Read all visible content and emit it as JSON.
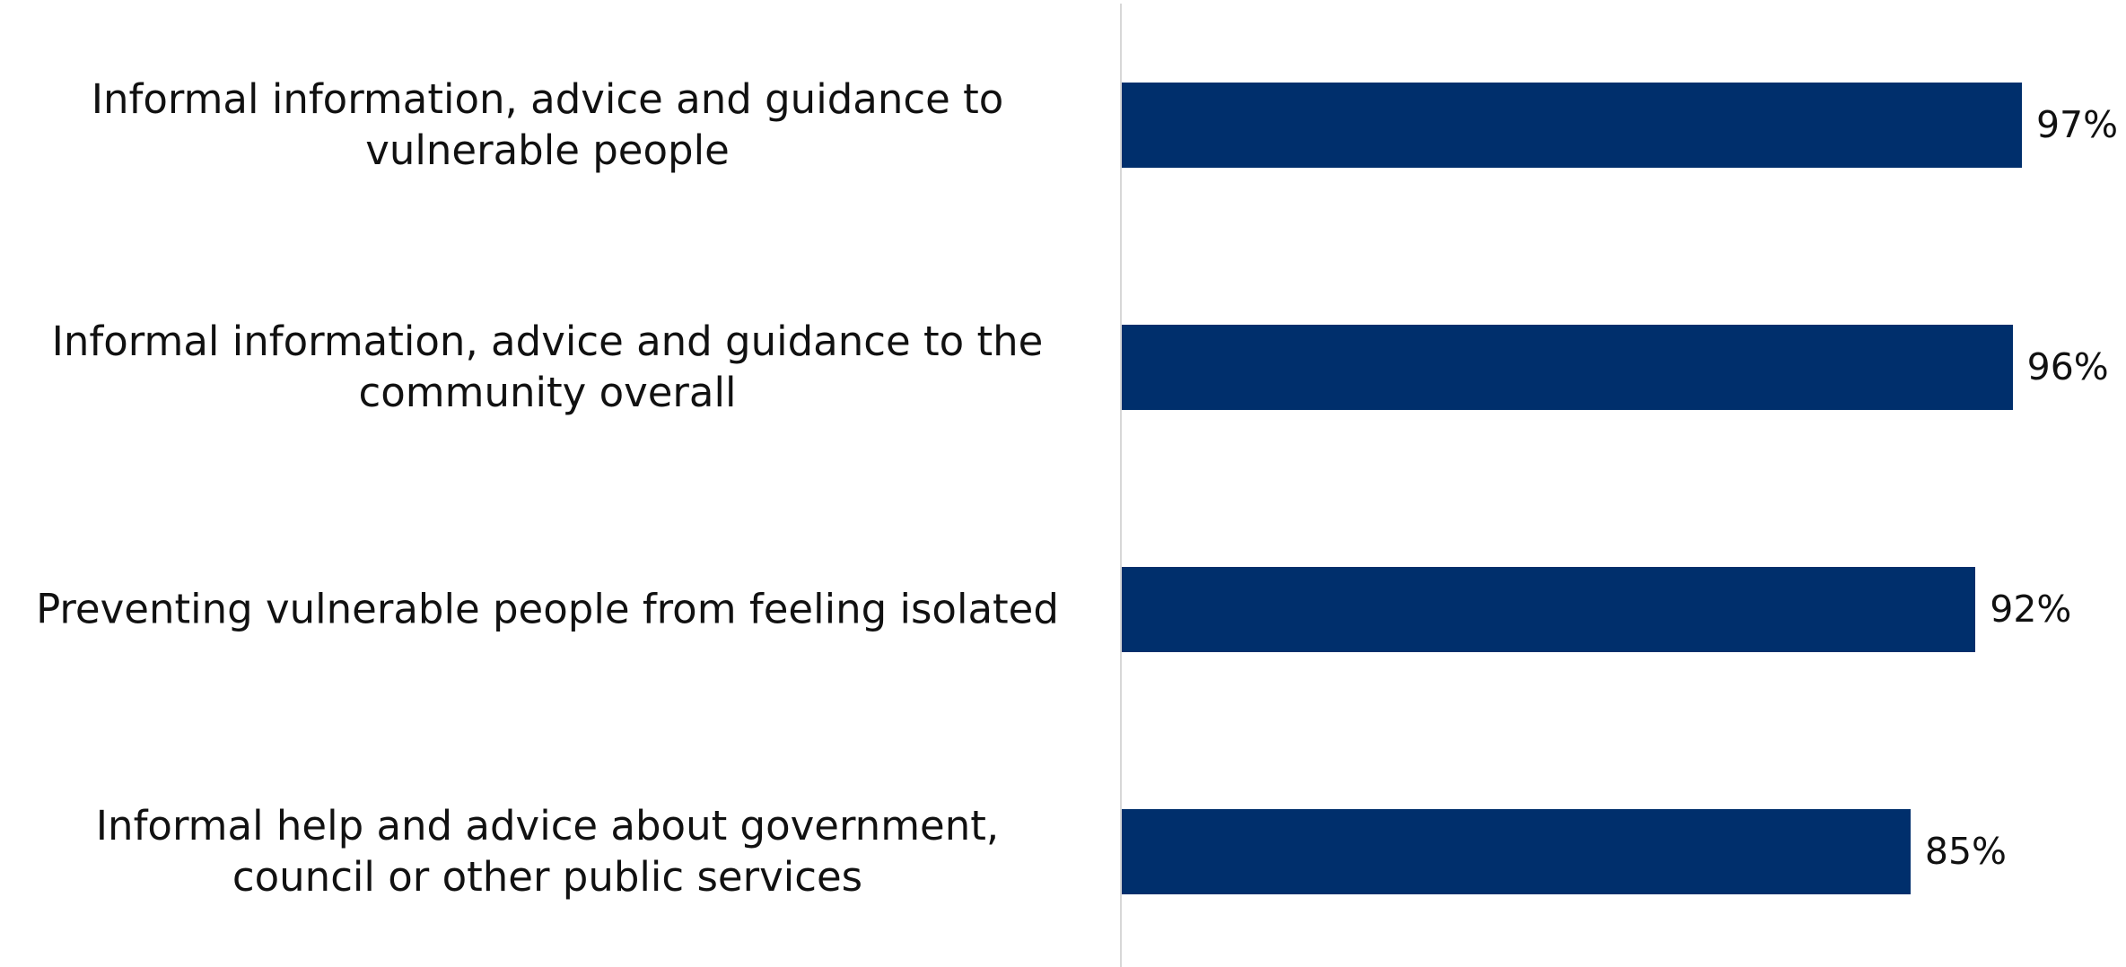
{
  "chart_data": {
    "type": "bar",
    "orientation": "horizontal",
    "categories": [
      "Informal information, advice and guidance to vulnerable people",
      "Informal information, advice and guidance to the community overall",
      "Preventing vulnerable people from feeling isolated",
      "Informal help and advice about government, council or other public services"
    ],
    "category_lines": [
      [
        "Informal information, advice and guidance to",
        "vulnerable people"
      ],
      [
        "Informal information, advice and guidance to the",
        "community overall"
      ],
      [
        "Preventing vulnerable people from feeling isolated"
      ],
      [
        "Informal help and advice about government,",
        "council or other public services"
      ]
    ],
    "values": [
      97,
      96,
      92,
      85
    ],
    "value_labels": [
      "97%",
      "96%",
      "92%",
      "85%"
    ],
    "title": "",
    "xlabel": "",
    "ylabel": "",
    "bar_color": "#002f6c",
    "grid": false,
    "legend": "none"
  }
}
